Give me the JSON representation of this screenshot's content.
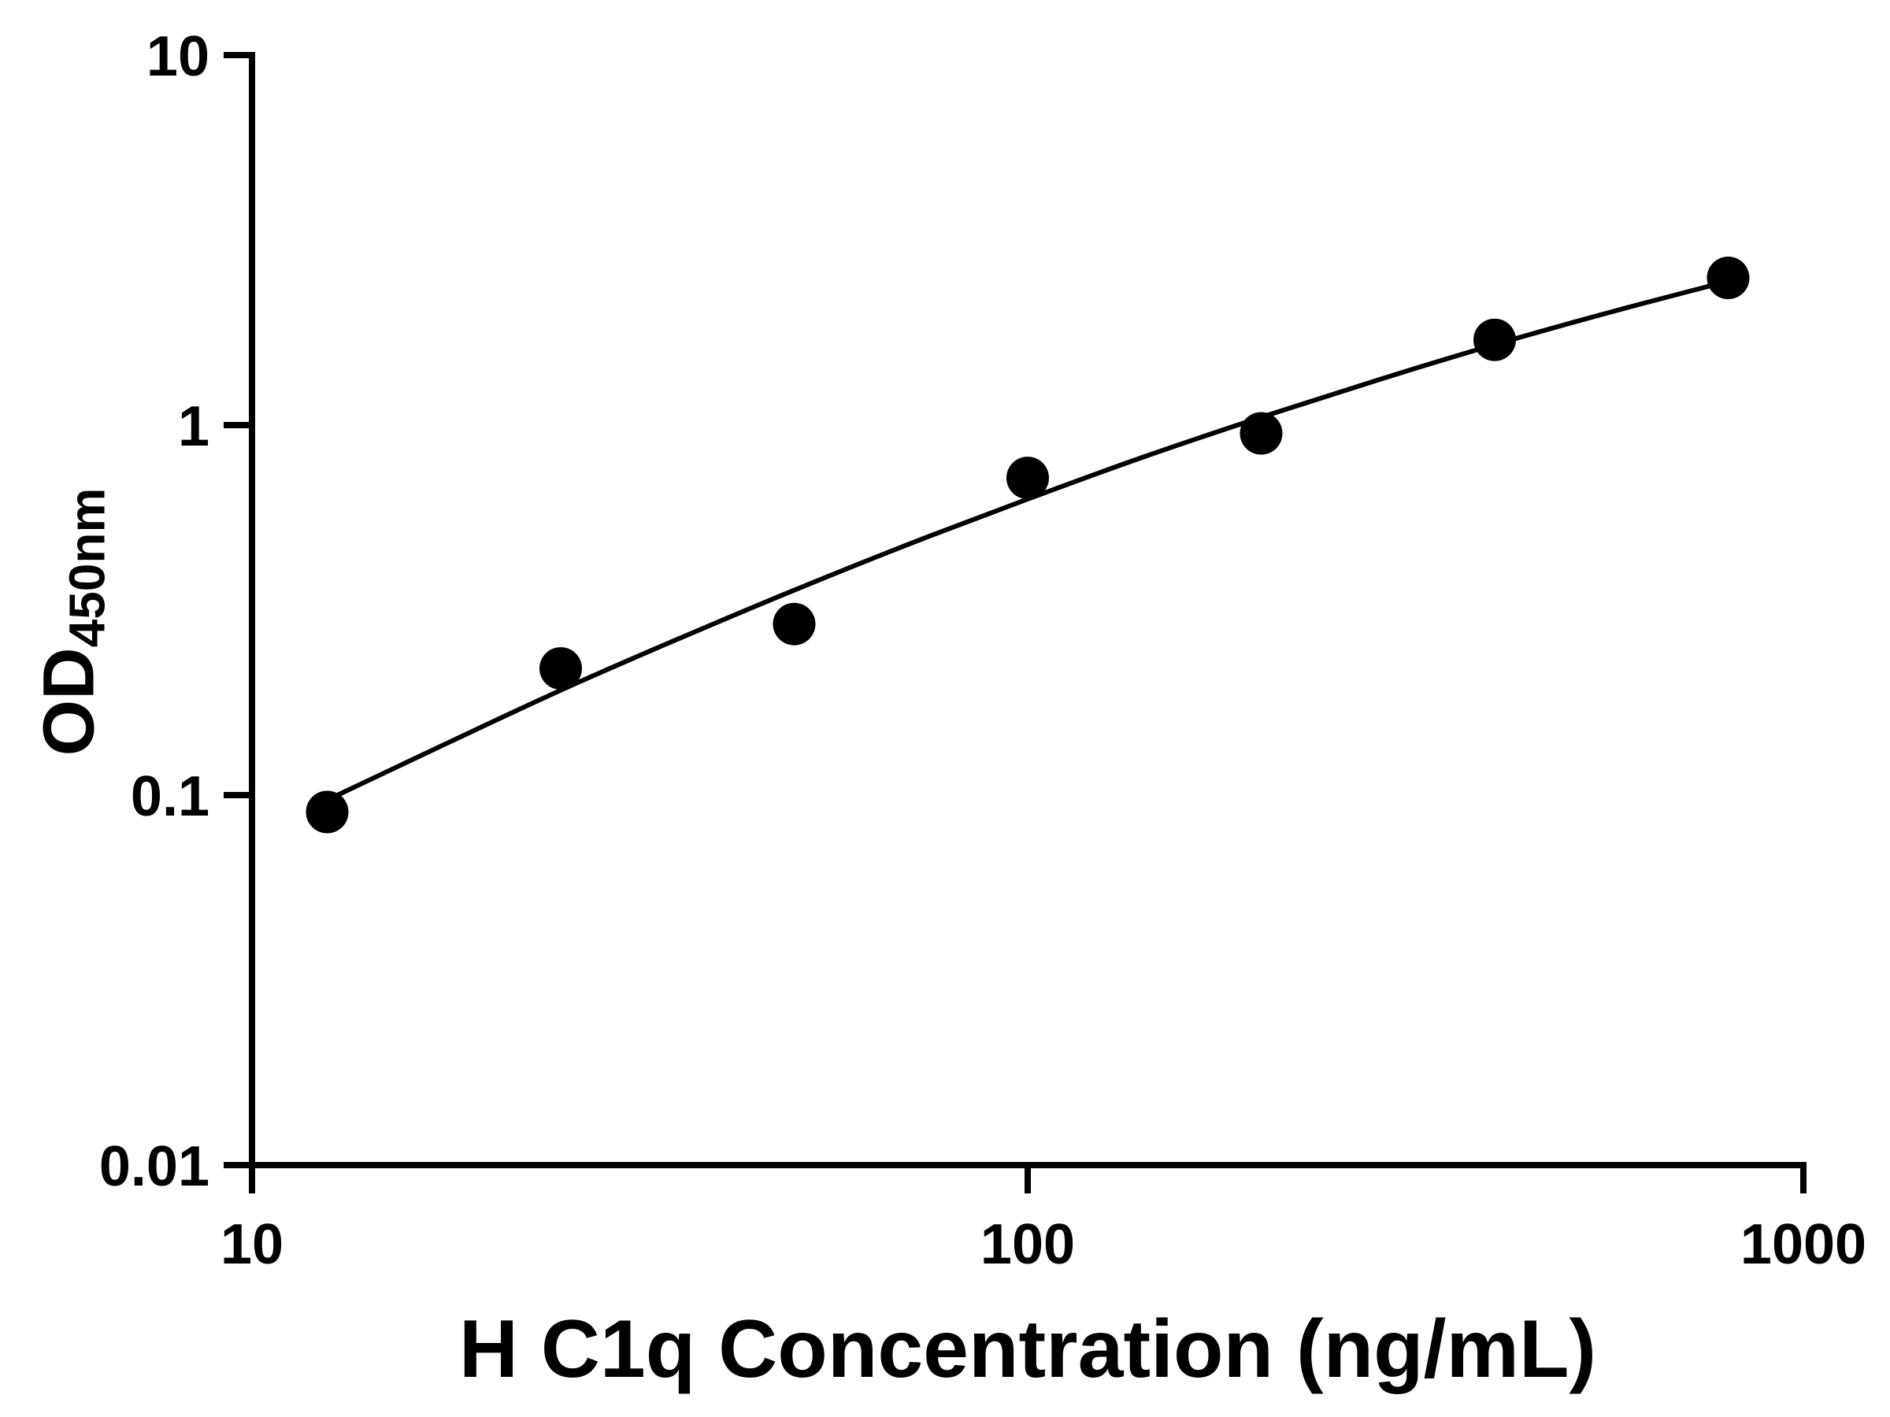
{
  "chart_data": {
    "type": "scatter",
    "title": "",
    "xlabel": "H C1q Concentration (ng/mL)",
    "ylabel": "OD",
    "ylabel_subscript": "450nm",
    "xscale": "log",
    "yscale": "log",
    "xlim": [
      10,
      1000
    ],
    "ylim": [
      0.01,
      10
    ],
    "x_ticks": [
      10,
      100,
      1000
    ],
    "x_tick_labels": [
      "10",
      "100",
      "1000"
    ],
    "y_ticks": [
      0.01,
      0.1,
      1,
      10
    ],
    "y_tick_labels": [
      "0.01",
      "0.1",
      "1",
      "10"
    ],
    "grid": false,
    "legend": null,
    "marker_color": "#000000",
    "line_color": "#000000",
    "axis_color": "#000000",
    "background_color": "#ffffff",
    "x": [
      12.5,
      25,
      50,
      100,
      200,
      400,
      800
    ],
    "y": [
      0.09,
      0.22,
      0.29,
      0.72,
      0.95,
      1.7,
      2.5
    ],
    "fit_curve": {
      "x": [
        12.5,
        17.7,
        25,
        35.4,
        50,
        70.7,
        100,
        141,
        200,
        283,
        400,
        566,
        800
      ],
      "y": [
        0.097,
        0.137,
        0.192,
        0.264,
        0.358,
        0.479,
        0.631,
        0.82,
        1.05,
        1.325,
        1.65,
        2.024,
        2.449
      ]
    }
  }
}
